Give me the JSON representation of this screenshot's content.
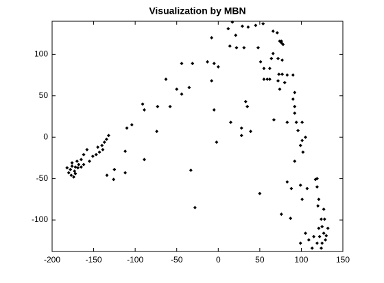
{
  "chart_data": {
    "type": "scatter",
    "title": "Visualization by MBN",
    "color": "#000000",
    "grid": false,
    "xlim": [
      -200,
      150
    ],
    "ylim": [
      -138,
      140
    ],
    "xticks": [
      -200,
      -150,
      -100,
      -50,
      0,
      50,
      100,
      150
    ],
    "yticks": [
      -100,
      -50,
      0,
      50,
      100
    ],
    "x": [
      -132,
      -134.5,
      -137,
      -140,
      -139,
      -143,
      -145,
      -147,
      -151,
      -155,
      -158,
      -162,
      -165,
      -168,
      -172,
      -170,
      -173,
      -176,
      -178,
      -180,
      -177,
      -174,
      -172,
      -169,
      -165,
      -162,
      -176,
      -182,
      -134,
      -126,
      -125,
      -112,
      -112,
      -110,
      -104,
      -91,
      -89,
      -89,
      -74,
      -73,
      -58,
      -63,
      -50,
      -44,
      -44,
      -35,
      -31,
      -33,
      -28,
      -13,
      -8,
      -5,
      0,
      -5,
      -2,
      -8,
      15,
      12,
      17,
      21,
      14,
      22,
      28,
      28,
      31,
      29,
      33,
      35,
      39,
      36,
      45,
      48,
      50,
      54,
      51,
      55,
      55,
      59,
      62,
      64,
      66,
      62,
      66,
      71,
      67,
      72,
      74,
      76,
      76,
      78,
      77,
      73,
      72,
      74,
      77,
      83,
      80,
      76,
      87,
      83,
      83,
      90,
      88,
      92,
      90,
      92,
      92,
      94,
      92,
      96,
      101,
      99,
      102,
      101,
      105,
      99,
      107,
      101,
      99,
      105,
      109,
      113,
      117,
      119,
      119,
      121,
      120,
      124,
      125,
      127,
      122,
      119,
      125,
      129,
      132,
      128,
      130,
      124,
      115,
      121,
      127
    ],
    "values": [
      2,
      -2.5,
      -6,
      -10,
      -15,
      -18,
      -12,
      -21,
      -23,
      -29,
      -15,
      -21,
      -27,
      -33,
      -36,
      -29,
      -41,
      -35,
      -39,
      -43,
      -46,
      -48,
      -44,
      -37,
      -36,
      -33,
      -31,
      -37,
      -46,
      -51,
      -39,
      -17,
      -43,
      11,
      15,
      40,
      33,
      -27,
      7,
      37,
      37,
      70,
      58,
      52,
      89,
      60,
      89,
      -40,
      -85,
      91,
      68,
      89,
      85,
      33,
      -6,
      120,
      18,
      131,
      139,
      123,
      110,
      108,
      11,
      2,
      108,
      134,
      43,
      37,
      7,
      133,
      135,
      108,
      -68,
      137,
      91,
      83,
      70,
      70,
      70,
      95,
      101,
      83,
      128,
      126,
      21,
      95,
      116,
      114,
      116,
      112,
      93,
      76,
      68,
      58,
      76,
      75,
      66,
      -93,
      -98,
      18,
      -54,
      75,
      -62,
      54,
      46,
      37,
      29,
      18,
      -29,
      8,
      -4,
      -10,
      -18,
      18,
      0,
      -58,
      -62,
      -75,
      -128,
      -116,
      -124,
      -134,
      -51,
      -50,
      -60,
      -75,
      -83,
      -99,
      -108,
      -116,
      -120,
      -128,
      -128,
      -124,
      -110,
      -99,
      -119,
      -134,
      -120,
      -110,
      -87
    ]
  }
}
